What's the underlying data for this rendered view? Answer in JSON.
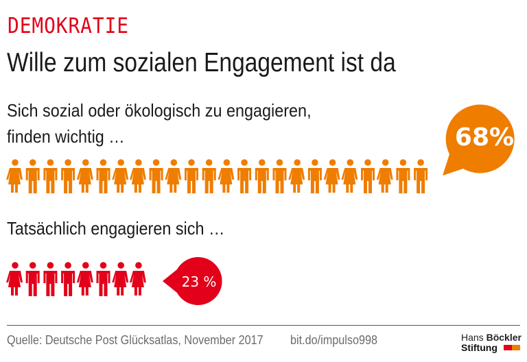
{
  "header": {
    "kicker": "DEMOKRATIE",
    "title": "Wille zum sozialen Engagement ist da"
  },
  "chart_data": {
    "type": "pictogram",
    "items": [
      {
        "label_line1": "Sich sozial oder ökologisch zu engagieren,",
        "label_line2": "finden wichtig …",
        "value": 68,
        "value_label": "68%",
        "icons": 24,
        "color": "#ef7d00",
        "pattern": [
          "F",
          "M",
          "M",
          "M",
          "F",
          "M",
          "F",
          "F",
          "M",
          "F",
          "M",
          "M",
          "F",
          "M",
          "M",
          "M",
          "F",
          "M",
          "F",
          "F",
          "M",
          "F",
          "M",
          "M"
        ]
      },
      {
        "label_line1": "Tatsächlich engagieren sich …",
        "value": 23,
        "value_label": "23 %",
        "icons": 8,
        "color": "#e2001a",
        "pattern": [
          "F",
          "M",
          "M",
          "M",
          "F",
          "M",
          "F",
          "F"
        ]
      }
    ]
  },
  "footer": {
    "source": "Quelle: Deutsche Post Glücksatlas, November 2017",
    "url": "bit.do/impulso998",
    "logo_line1_a": "Hans ",
    "logo_line1_b": "Böckler",
    "logo_line2": "Stiftung",
    "logo_colors": [
      "#e2001a",
      "#ef7d00"
    ]
  }
}
